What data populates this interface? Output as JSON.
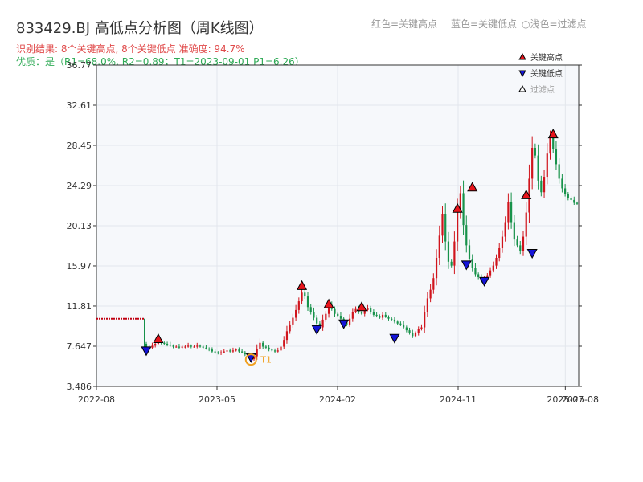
{
  "header": {
    "title": "833429.BJ 高低点分析图（周K线图）",
    "legend_high": "红色=关键高点",
    "legend_low": "蓝色=关键低点",
    "legend_filter": "○浅色=过滤点",
    "result_line": "识别结果: 8个关键高点, 8个关键低点  准确度: 94.7%",
    "quality_line": "优质：是（R1=68.0%, R2=0.89；T1=2023-09-01 P1=6.26）"
  },
  "colors": {
    "up": "#d0141c",
    "down": "#17924a",
    "high_marker": "#e8141c",
    "low_marker": "#1414d8",
    "filter_ring": "#f0a020",
    "grid": "#e2e6ec",
    "plot_bg": "#f6f8fb"
  },
  "chart_data": {
    "type": "candlestick",
    "x_axis": {
      "ticks": [
        {
          "label": "2022-08",
          "t": 0
        },
        {
          "label": "2023-05",
          "t": 9
        },
        {
          "label": "2024-02",
          "t": 18
        },
        {
          "label": "2024-11",
          "t": 27
        },
        {
          "label": "2025-07",
          "t": 35
        }
      ],
      "end_label": "2025-08",
      "range_months": [
        0,
        36
      ]
    },
    "y_axis": {
      "ticks": [
        "3.486",
        "7.647",
        "11.81",
        "15.97",
        "20.13",
        "24.29",
        "28.45",
        "32.61",
        "36.77"
      ],
      "range": [
        3.486,
        36.77
      ]
    },
    "legend": [
      {
        "label": "关键高点",
        "kind": "high"
      },
      {
        "label": "关键低点",
        "kind": "low"
      },
      {
        "label": "过滤点",
        "kind": "filter"
      }
    ],
    "legend_position": "top-right",
    "pre_listing_level": 10.5,
    "weekly_close": [
      7.6,
      7.5,
      7.7,
      7.9,
      8.1,
      8.0,
      7.9,
      7.8,
      7.7,
      7.6,
      7.6,
      7.5,
      7.6,
      7.6,
      7.7,
      7.6,
      7.6,
      7.7,
      7.6,
      7.5,
      7.4,
      7.3,
      7.1,
      7.0,
      6.9,
      7.0,
      7.1,
      7.2,
      7.1,
      7.2,
      7.3,
      7.1,
      7.0,
      6.8,
      6.5,
      6.3,
      6.6,
      7.4,
      8.0,
      7.6,
      7.5,
      7.3,
      7.2,
      7.1,
      7.2,
      7.6,
      8.3,
      9.2,
      9.9,
      10.6,
      11.4,
      12.3,
      13.2,
      12.8,
      11.7,
      11.2,
      10.6,
      10.0,
      9.6,
      10.4,
      11.0,
      11.9,
      11.5,
      11.0,
      10.8,
      10.5,
      10.1,
      9.9,
      10.5,
      11.2,
      11.5,
      11.2,
      11.0,
      11.4,
      11.6,
      11.2,
      10.9,
      10.8,
      10.6,
      10.9,
      10.7,
      10.5,
      10.4,
      10.2,
      10.0,
      9.9,
      9.6,
      9.3,
      9.0,
      8.7,
      9.0,
      9.4,
      9.6,
      11.2,
      12.6,
      13.5,
      14.7,
      16.8,
      19.1,
      21.3,
      18.5,
      16.4,
      16.0,
      18.5,
      21.6,
      23.5,
      20.2,
      18.1,
      16.7,
      15.8,
      15.1,
      14.8,
      14.4,
      14.6,
      15.0,
      15.5,
      16.0,
      16.8,
      17.8,
      19.0,
      20.5,
      22.6,
      20.5,
      18.7,
      18.1,
      17.5,
      19.0,
      21.5,
      25.0,
      28.2,
      27.4,
      24.8,
      23.6,
      25.2,
      27.6,
      29.3,
      28.1,
      26.5,
      25.0,
      24.0,
      23.4,
      23.0,
      22.8,
      22.5,
      22.4
    ],
    "key_highs": [
      {
        "week": 4,
        "price": 8.4
      },
      {
        "week": 52,
        "price": 13.9
      },
      {
        "week": 61,
        "price": 12.0
      },
      {
        "week": 72,
        "price": 11.7
      },
      {
        "week": 104,
        "price": 21.9
      },
      {
        "week": 109,
        "price": 24.1
      },
      {
        "week": 127,
        "price": 23.3
      },
      {
        "week": 136,
        "price": 29.6
      }
    ],
    "key_lows": [
      {
        "week": 0,
        "price": 7.2
      },
      {
        "week": 57,
        "price": 9.4
      },
      {
        "week": 66,
        "price": 10.0
      },
      {
        "week": 83,
        "price": 8.5
      },
      {
        "week": 107,
        "price": 16.1
      },
      {
        "week": 113,
        "price": 14.4
      },
      {
        "week": 129,
        "price": 17.3
      },
      {
        "week": 35,
        "price": 6.5
      }
    ],
    "filtered": [
      {
        "week": 35,
        "price": 6.26,
        "label": "T1"
      }
    ]
  }
}
